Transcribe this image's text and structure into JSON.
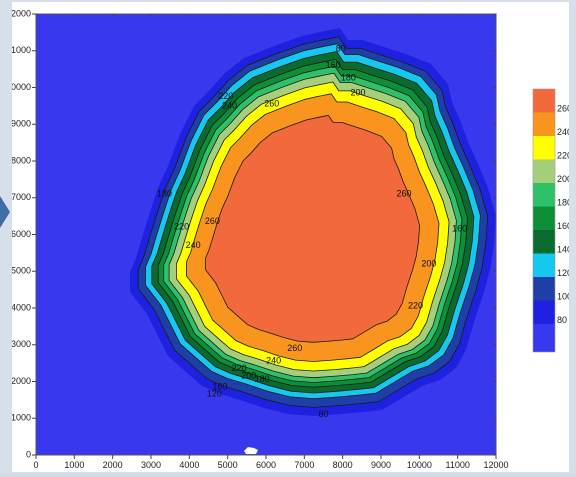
{
  "chart_data": {
    "type": "filled-contour",
    "title": "",
    "xlabel": "",
    "ylabel": "",
    "xlim": [
      0,
      12000
    ],
    "ylim": [
      0,
      12000
    ],
    "x_ticks": [
      "0",
      "1000",
      "2000",
      "3000",
      "4000",
      "5000",
      "6000",
      "7000",
      "8000",
      "9000",
      "10000",
      "11000",
      "12000"
    ],
    "y_ticks": [
      "0",
      "1000",
      "2000",
      "3000",
      "4000",
      "5000",
      "6000",
      "7000",
      "8000",
      "9000",
      "10000",
      "11000",
      "12000"
    ],
    "contour_levels": [
      80,
      100,
      120,
      140,
      160,
      180,
      200,
      220,
      240,
      260
    ],
    "colorbar": {
      "labels": [
        "260",
        "240",
        "220",
        "200",
        "180",
        "160",
        "140",
        "120",
        "100",
        "80"
      ],
      "colors": [
        "#f26a3c",
        "#f9951f",
        "#ffff00",
        "#a5cf7a",
        "#2fc16a",
        "#0c8f37",
        "#0b6a2e",
        "#16c8ef",
        "#1f3fa8",
        "#1e22e0"
      ],
      "background_color": "#3838ee",
      "position": "right"
    },
    "contour_line_labels": [
      {
        "text": "80",
        "x": 7950,
        "y": 11050
      },
      {
        "text": "160",
        "x": 7750,
        "y": 10600
      },
      {
        "text": "180",
        "x": 8150,
        "y": 10250
      },
      {
        "text": "200",
        "x": 8400,
        "y": 9850
      },
      {
        "text": "220",
        "x": 4950,
        "y": 9750
      },
      {
        "text": "240",
        "x": 5050,
        "y": 9500
      },
      {
        "text": "260",
        "x": 6150,
        "y": 9550
      },
      {
        "text": "180",
        "x": 3350,
        "y": 7100
      },
      {
        "text": "220",
        "x": 3800,
        "y": 6200
      },
      {
        "text": "240",
        "x": 4100,
        "y": 5700
      },
      {
        "text": "260",
        "x": 4600,
        "y": 6350
      },
      {
        "text": "260",
        "x": 9600,
        "y": 7100
      },
      {
        "text": "160",
        "x": 11050,
        "y": 6150
      },
      {
        "text": "200",
        "x": 10250,
        "y": 5200
      },
      {
        "text": "220",
        "x": 9900,
        "y": 4050
      },
      {
        "text": "260",
        "x": 6750,
        "y": 2900
      },
      {
        "text": "240",
        "x": 6200,
        "y": 2550
      },
      {
        "text": "220",
        "x": 5300,
        "y": 2350
      },
      {
        "text": "200",
        "x": 5550,
        "y": 2150
      },
      {
        "text": "180",
        "x": 5900,
        "y": 2050
      },
      {
        "text": "160",
        "x": 4800,
        "y": 1850
      },
      {
        "text": "120",
        "x": 4650,
        "y": 1650
      },
      {
        "text": "80",
        "x": 7500,
        "y": 1100
      }
    ]
  }
}
